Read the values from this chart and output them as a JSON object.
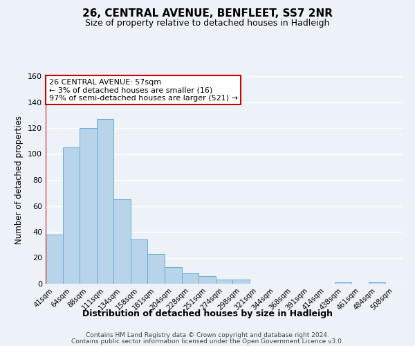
{
  "title": "26, CENTRAL AVENUE, BENFLEET, SS7 2NR",
  "subtitle": "Size of property relative to detached houses in Hadleigh",
  "xlabel": "Distribution of detached houses by size in Hadleigh",
  "ylabel": "Number of detached properties",
  "bin_labels": [
    "41sqm",
    "64sqm",
    "88sqm",
    "111sqm",
    "134sqm",
    "158sqm",
    "181sqm",
    "204sqm",
    "228sqm",
    "251sqm",
    "274sqm",
    "298sqm",
    "321sqm",
    "344sqm",
    "368sqm",
    "391sqm",
    "414sqm",
    "438sqm",
    "461sqm",
    "484sqm",
    "508sqm"
  ],
  "bar_values": [
    38,
    105,
    120,
    127,
    65,
    34,
    23,
    13,
    8,
    6,
    3,
    3,
    0,
    0,
    0,
    0,
    0,
    1,
    0,
    1,
    0
  ],
  "bar_color": "#b8d4ea",
  "bar_edge_color": "#6aaad4",
  "highlight_color": "#cc0000",
  "annotation_title": "26 CENTRAL AVENUE: 57sqm",
  "annotation_line1": "← 3% of detached houses are smaller (16)",
  "annotation_line2": "97% of semi-detached houses are larger (521) →",
  "annotation_box_color": "#ffffff",
  "annotation_border_color": "#cc0000",
  "ylim": [
    0,
    160
  ],
  "yticks": [
    0,
    20,
    40,
    60,
    80,
    100,
    120,
    140,
    160
  ],
  "footer_line1": "Contains HM Land Registry data © Crown copyright and database right 2024.",
  "footer_line2": "Contains public sector information licensed under the Open Government Licence v3.0.",
  "background_color": "#edf2f9",
  "grid_color": "#ffffff"
}
